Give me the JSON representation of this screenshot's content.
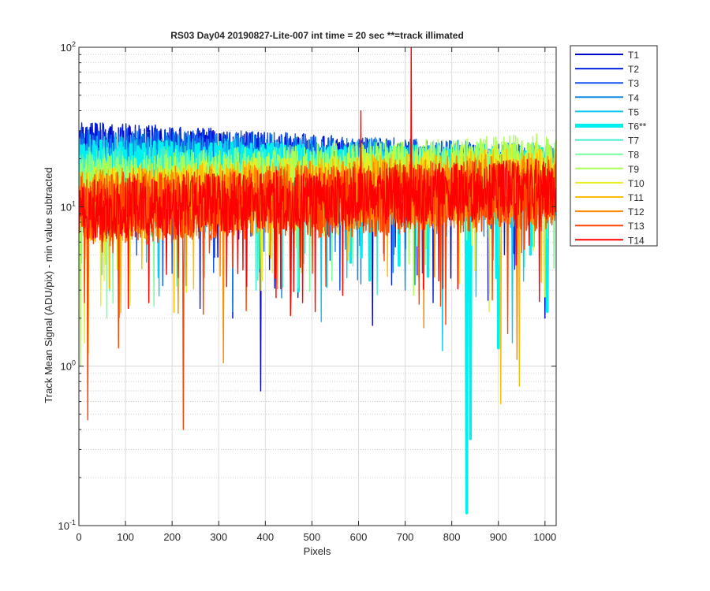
{
  "chart_data": {
    "type": "line",
    "title": "RS03 Day04 20190827-Lite-007 int time = 20 sec    **=track illimated",
    "xlabel": "Pixels",
    "ylabel": "Track Mean Signal (ADU/pix) - min value subtracted",
    "xlim": [
      0,
      1024
    ],
    "ylim": [
      0.1,
      100
    ],
    "yscale": "log",
    "grid": true,
    "minor_grid": true,
    "legend_position": "top-right-outside",
    "x_ticks": [
      0,
      100,
      200,
      300,
      400,
      500,
      600,
      700,
      800,
      900,
      1000
    ],
    "x_tick_labels": [
      "0",
      "100",
      "200",
      "300",
      "400",
      "500",
      "600",
      "700",
      "800",
      "900",
      "1000"
    ],
    "y_ticks": [
      0.1,
      1,
      10,
      100
    ],
    "y_tick_labels": [
      {
        "base": "10",
        "exp": "-1"
      },
      {
        "base": "10",
        "exp": "0"
      },
      {
        "base": "10",
        "exp": "1"
      },
      {
        "base": "10",
        "exp": "2"
      }
    ],
    "series": [
      {
        "name": "T1",
        "color": "#0000cc",
        "highlight": false,
        "base_start": 22,
        "base_end": 14,
        "spread": 1.55,
        "dips": [
          [
            390,
            0.7
          ],
          [
            330,
            2.0
          ],
          [
            630,
            1.8
          ],
          [
            1000,
            2.0
          ]
        ]
      },
      {
        "name": "T2",
        "color": "#0022dd",
        "highlight": false,
        "base_start": 23,
        "base_end": 15,
        "spread": 1.5,
        "dips": [
          [
            260,
            2.3
          ],
          [
            470,
            2.7
          ],
          [
            760,
            2.5
          ]
        ]
      },
      {
        "name": "T3",
        "color": "#1155ee",
        "highlight": false,
        "base_start": 22,
        "base_end": 16,
        "spread": 1.5,
        "dips": [
          [
            180,
            3.2
          ],
          [
            560,
            3.0
          ],
          [
            880,
            2.8
          ]
        ]
      },
      {
        "name": "T4",
        "color": "#0f88e8",
        "highlight": false,
        "base_start": 20,
        "base_end": 16,
        "spread": 1.55,
        "dips": [
          [
            330,
            2.2
          ],
          [
            700,
            3.0
          ]
        ]
      },
      {
        "name": "T5",
        "color": "#11c6f0",
        "highlight": false,
        "base_start": 18,
        "base_end": 15,
        "spread": 1.6,
        "dips": [
          [
            520,
            1.9
          ],
          [
            780,
            1.25
          ],
          [
            930,
            1.4
          ]
        ]
      },
      {
        "name": "T6**",
        "color": "#00f0f0",
        "highlight": true,
        "base_start": 16,
        "base_end": 14,
        "spread": 1.65,
        "dips": [
          [
            832,
            0.12
          ],
          [
            840,
            0.35
          ],
          [
            900,
            1.3
          ],
          [
            1005,
            2.2
          ]
        ]
      },
      {
        "name": "T7",
        "color": "#44eecc",
        "highlight": false,
        "base_start": 15,
        "base_end": 15,
        "spread": 1.6,
        "dips": [
          [
            380,
            3.0
          ],
          [
            640,
            2.8
          ]
        ]
      },
      {
        "name": "T8",
        "color": "#77ff99",
        "highlight": false,
        "base_start": 14,
        "base_end": 16,
        "spread": 1.6,
        "dips": [
          [
            60,
            2.0
          ],
          [
            470,
            3.1
          ]
        ]
      },
      {
        "name": "T9",
        "color": "#aaff55",
        "highlight": false,
        "base_start": 13,
        "base_end": 19,
        "spread": 1.55,
        "dips": [
          [
            3,
            1.0
          ],
          [
            210,
            4.5
          ]
        ]
      },
      {
        "name": "T10",
        "color": "#e8ee22",
        "highlight": false,
        "base_start": 11,
        "base_end": 16,
        "spread": 1.6,
        "dips": [
          [
            12,
            1.4
          ],
          [
            110,
            2.4
          ],
          [
            880,
            2.2
          ]
        ]
      },
      {
        "name": "T11",
        "color": "#ffbb00",
        "highlight": false,
        "base_start": 10,
        "base_end": 14,
        "spread": 1.7,
        "dips": [
          [
            20,
            1.2
          ],
          [
            310,
            1.6
          ],
          [
            905,
            0.58
          ],
          [
            945,
            0.75
          ]
        ]
      },
      {
        "name": "T12",
        "color": "#ff8800",
        "highlight": false,
        "base_start": 10,
        "base_end": 13,
        "spread": 1.7,
        "dips": [
          [
            310,
            1.05
          ],
          [
            940,
            1.1
          ]
        ]
      },
      {
        "name": "T13",
        "color": "#ff4400",
        "highlight": false,
        "base_start": 9.5,
        "base_end": 12,
        "spread": 1.7,
        "dips": [
          [
            19,
            0.46
          ],
          [
            224,
            0.4
          ],
          [
            85,
            1.3
          ],
          [
            920,
            1.6
          ]
        ]
      },
      {
        "name": "T14",
        "color": "#ff0000",
        "highlight": false,
        "base_start": 9.5,
        "base_end": 13,
        "spread": 1.55,
        "dips": [
          [
            150,
            2.5
          ],
          [
            480,
            2.5
          ]
        ],
        "peaks": [
          [
            605,
            40
          ],
          [
            713,
            100
          ]
        ]
      }
    ]
  }
}
